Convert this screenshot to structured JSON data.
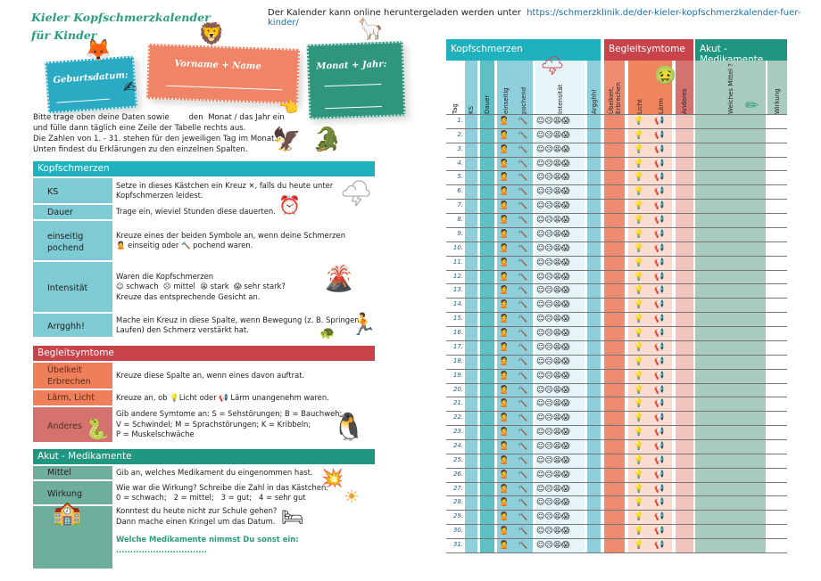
{
  "title_line1": "Kieler Kopfschmerzkalender",
  "title_line2": "für Kinder",
  "online_note": "Der Kalender kann online heruntergeladen werden unter",
  "online_url": "https://schmerzklinik.de/der-kieler-kopfschmerzkalender-fuer-kinder/",
  "cards": {
    "birth": "Geburtsdatum:",
    "name": "Vorname + Name",
    "month": "Monat + Jahr:"
  },
  "intro": [
    "Bitte trage oben deine Daten sowie        den  Monat / das Jahr ein",
    "und fülle dann täglich eine Zeile der Tabelle rechts aus.",
    "Die Zahlen von 1. - 31. stehen für den jeweiligen Tag im Monat.",
    "Unten findest du Erklärungen zu den einzelnen Spalten."
  ],
  "colors": {
    "teal": "#1fb1bd",
    "red": "#c9434b",
    "green": "#1f9680",
    "salmon": "#ef8262",
    "sage": "#8fbcad"
  },
  "legend": {
    "kopf_title": "Kopfschmerzen",
    "ks_label": "KS",
    "ks_text1": "Setze in dieses Kästchen ein Kreuz ✕, falls du heute unter",
    "ks_text2": "Kopfschmerzen leidest.",
    "dauer_label": "Dauer",
    "dauer_text": "Trage ein, wieviel Stunden diese dauerten.",
    "ein_label1": "einseitig",
    "ein_label2": "pochend",
    "ein_text1": "Kreuze eines der beiden Symbole an, wenn deine Schmerzen",
    "ein_text2a": "einseitig oder",
    "ein_text2b": "pochend waren.",
    "int_label": "Intensität",
    "int_text1": "Waren die Kopfschmerzen",
    "int_schwach": "schwach",
    "int_mittel": "mittel",
    "int_stark": "stark",
    "int_sehr": "sehr stark?",
    "int_text3": "Kreuze das entsprechende Gesicht an.",
    "arg_label": "Arrgghh!",
    "arg_text1": "Mache ein Kreuz in diese Spalte, wenn Bewegung (z. B. Springen,",
    "arg_text2": "Laufen) den Schmerz verstärkt hat.",
    "begl_title": "Begleitsymtome",
    "ueb_label1": "Übelkeit",
    "ueb_label2": "Erbrechen",
    "ueb_text": "Kreuze diese Spalte an, wenn eines davon auftrat.",
    "laerm_label": "Lärm, Licht",
    "laerm_text_a": "Kreuze an, ob",
    "laerm_text_b": "Licht oder",
    "laerm_text_c": "Lärm unangenehm waren.",
    "and_label": "Anderes",
    "and_text1": "Gib andere Symtome an: S = Sehstörungen; B = Bauchweh;",
    "and_text2": "V = Schwindel; M = Sprachstörungen; K = Kribbeln;",
    "and_text3": "P = Muskelschwäche",
    "akut_title": "Akut - Medikamente",
    "mittel_label": "Mittel",
    "mittel_text": "Gib an, welches Medikament du eingenommen hast.",
    "wirk_label": "Wirkung",
    "wirk_text1": "Wie war die Wirkung? Schreibe die Zahl in das Kästchen:",
    "wirk_text2": "0 = schwach;   2 = mittel;   3 = gut;   4 = sehr gut",
    "schule_text1": "Konntest du heute nicht zur Schule gehen?",
    "schule_text2": "Dann mache einen Kringel um das Datum.",
    "sonst_text": "Welche Medikamente nimmst Du sonst ein: ................................",
    "dots": "............................................................................................................"
  },
  "table": {
    "groups": [
      "Kopfschmerzen",
      "Begleitsymtome",
      "Akut - Medikamente"
    ],
    "columns": [
      "Tag",
      "KS",
      "Dauer",
      "einseitig",
      "pochend",
      "Intensität",
      "Argghh!",
      "Übelkeit, Erbrechen",
      "Licht",
      "Lärm",
      "Anderes",
      "Welches Mittel ?",
      "Wirkung"
    ],
    "days": [
      "1.",
      "2.",
      "3.",
      "4.",
      "5.",
      "6.",
      "7.",
      "8.",
      "9.",
      "10.",
      "11.",
      "12.",
      "13.",
      "14.",
      "15.",
      "16.",
      "17.",
      "18.",
      "19.",
      "20.",
      "21.",
      "22.",
      "23.",
      "24.",
      "25.",
      "26.",
      "27.",
      "28.",
      "29.",
      "30.",
      "31."
    ]
  }
}
